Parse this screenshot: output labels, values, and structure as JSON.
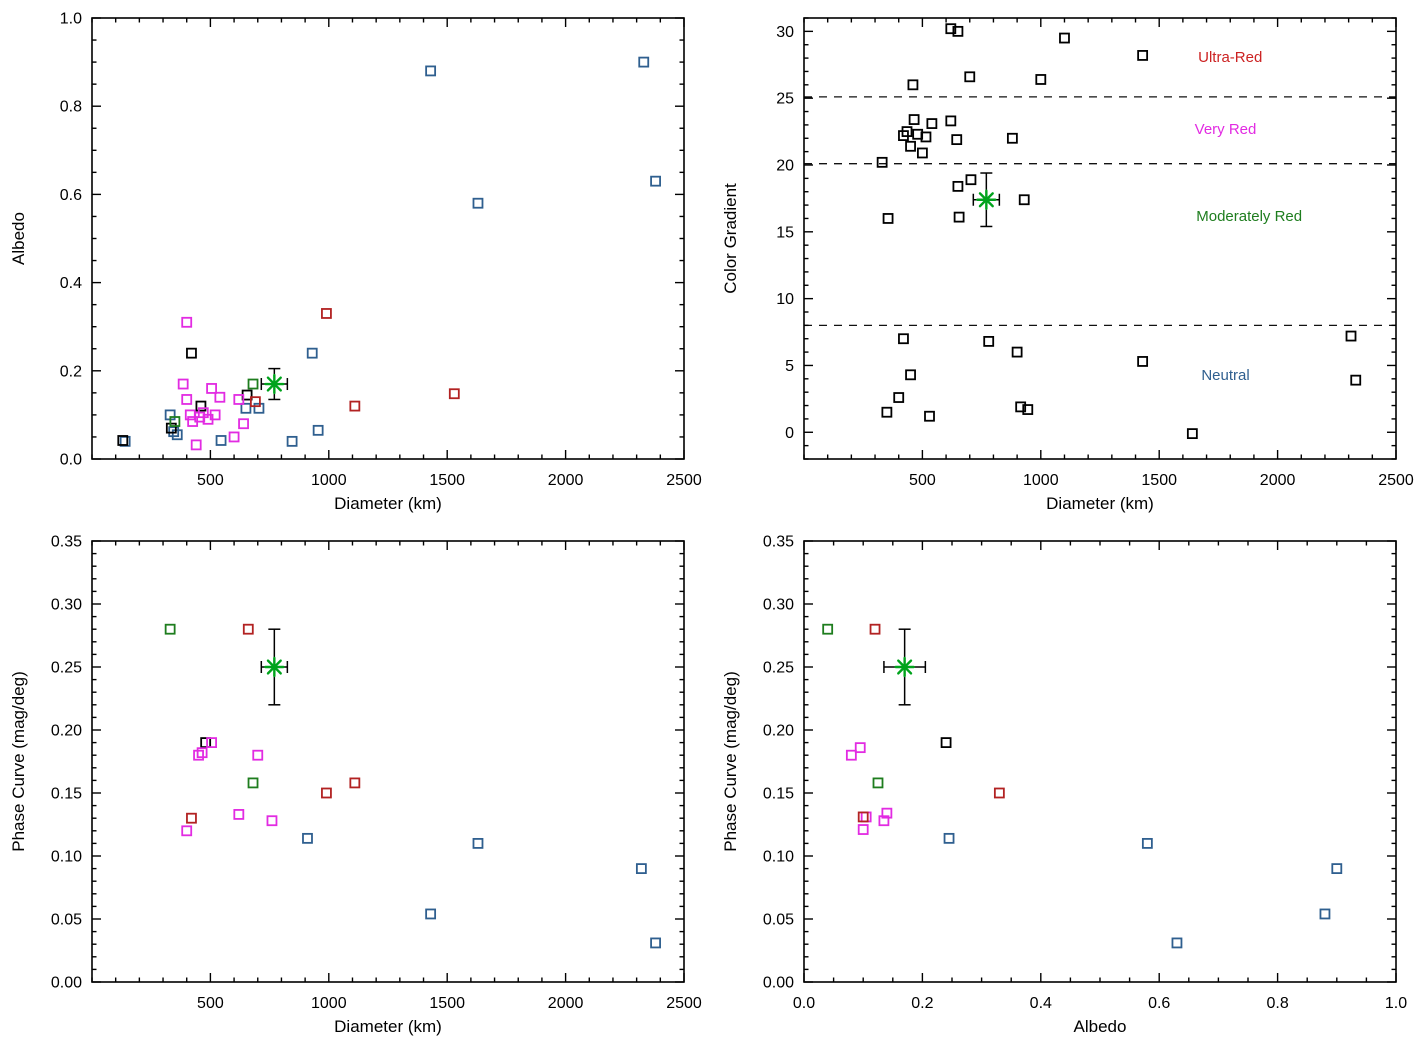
{
  "figure": {
    "description": "Four-panel scatter figure: albedo, color gradient and phase curve relations for trans-Neptunian objects",
    "accent_colors": {
      "neutral_blue": "#2f5f8f",
      "very_red_magenta": "#e22be2",
      "moderately_red_green": "#1e7d1e",
      "ultra_red_dark_red": "#b22222",
      "target_green": "#00a31c",
      "axis_black": "#000000"
    }
  },
  "chart_data": [
    {
      "id": "albedo-vs-diameter",
      "type": "scatter",
      "title": "",
      "xlabel": "Diameter (km)",
      "ylabel": "Albedo",
      "xlim": [
        0,
        2500
      ],
      "ylim": [
        0,
        1.0
      ],
      "xticks": [
        500,
        1000,
        1500,
        2000,
        2500
      ],
      "xtick_labels": [
        "500",
        "1000",
        "1500",
        "2000",
        "2500"
      ],
      "yticks": [
        0,
        0.2,
        0.4,
        0.6,
        0.8,
        1.0
      ],
      "ytick_labels": [
        "0.0",
        "0.2",
        "0.4",
        "0.6",
        "0.8",
        "1.0"
      ],
      "xminor": 5,
      "yminor": 4,
      "grid": false,
      "series": [
        {
          "name": "neutral-blue",
          "color": "#2f5f8f",
          "marker": "square",
          "points": [
            [
              140,
              0.04
            ],
            [
              330,
              0.1
            ],
            [
              345,
              0.062
            ],
            [
              360,
              0.055
            ],
            [
              545,
              0.042
            ],
            [
              650,
              0.115
            ],
            [
              705,
              0.115
            ],
            [
              845,
              0.04
            ],
            [
              930,
              0.24
            ],
            [
              955,
              0.065
            ],
            [
              1430,
              0.88
            ],
            [
              1630,
              0.58
            ],
            [
              2330,
              0.9
            ],
            [
              2380,
              0.63
            ]
          ]
        },
        {
          "name": "black",
          "color": "#000000",
          "marker": "square",
          "points": [
            [
              130,
              0.042
            ],
            [
              335,
              0.07
            ],
            [
              420,
              0.24
            ],
            [
              460,
              0.12
            ],
            [
              655,
              0.145
            ]
          ]
        },
        {
          "name": "very-red-magenta",
          "color": "#e22be2",
          "marker": "square",
          "points": [
            [
              385,
              0.17
            ],
            [
              400,
              0.31
            ],
            [
              400,
              0.135
            ],
            [
              415,
              0.1
            ],
            [
              425,
              0.085
            ],
            [
              440,
              0.032
            ],
            [
              455,
              0.095
            ],
            [
              470,
              0.105
            ],
            [
              490,
              0.09
            ],
            [
              505,
              0.16
            ],
            [
              520,
              0.1
            ],
            [
              540,
              0.14
            ],
            [
              600,
              0.05
            ],
            [
              620,
              0.135
            ],
            [
              640,
              0.08
            ]
          ]
        },
        {
          "name": "moderately-red-green",
          "color": "#1e7d1e",
          "marker": "square",
          "points": [
            [
              350,
              0.085
            ],
            [
              680,
              0.17
            ]
          ]
        },
        {
          "name": "ultra-red-dark-red",
          "color": "#b22222",
          "marker": "square",
          "points": [
            [
              690,
              0.13
            ],
            [
              990,
              0.33
            ],
            [
              1110,
              0.12
            ],
            [
              1530,
              0.148
            ]
          ]
        }
      ],
      "highlight": {
        "name": "target",
        "color": "#00a31c",
        "marker": "asterisk",
        "x": 770,
        "y": 0.17,
        "xerr": 55,
        "yerr": 0.035
      }
    },
    {
      "id": "color-gradient-vs-diameter",
      "type": "scatter",
      "title": "",
      "xlabel": "Diameter (km)",
      "ylabel": "Color Gradient",
      "xlim": [
        0,
        2500
      ],
      "ylim": [
        -2,
        31
      ],
      "xticks": [
        500,
        1000,
        1500,
        2000,
        2500
      ],
      "xtick_labels": [
        "500",
        "1000",
        "1500",
        "2000",
        "2500"
      ],
      "yticks": [
        0,
        5,
        10,
        15,
        20,
        25,
        30
      ],
      "ytick_labels": [
        "0",
        "5",
        "10",
        "15",
        "20",
        "25",
        "30"
      ],
      "xminor": 5,
      "yminor": 5,
      "grid": false,
      "hlines": [
        {
          "y": 25.1,
          "style": "dashed"
        },
        {
          "y": 20.1,
          "style": "dashed"
        },
        {
          "y": 8.0,
          "style": "dashed"
        }
      ],
      "annotations": [
        {
          "text": "Ultra-Red",
          "color": "#cc2222",
          "x": 1800,
          "y": 28.1
        },
        {
          "text": "Very Red",
          "color": "#e22be2",
          "x": 1780,
          "y": 22.7
        },
        {
          "text": "Moderately Red",
          "color": "#1e7d1e",
          "x": 1880,
          "y": 16.2
        },
        {
          "text": "Neutral",
          "color": "#2f5f8f",
          "x": 1780,
          "y": 4.3
        }
      ],
      "series": [
        {
          "name": "all-objects",
          "color": "#000000",
          "marker": "square",
          "points": [
            [
              330,
              20.2
            ],
            [
              355,
              16.0
            ],
            [
              420,
              22.2
            ],
            [
              435,
              22.5
            ],
            [
              450,
              21.4
            ],
            [
              460,
              26.0
            ],
            [
              465,
              23.4
            ],
            [
              480,
              22.3
            ],
            [
              500,
              20.9
            ],
            [
              515,
              22.1
            ],
            [
              540,
              23.1
            ],
            [
              620,
              30.2
            ],
            [
              650,
              30.0
            ],
            [
              620,
              23.3
            ],
            [
              645,
              21.9
            ],
            [
              650,
              18.4
            ],
            [
              655,
              16.1
            ],
            [
              700,
              26.6
            ],
            [
              705,
              18.9
            ],
            [
              880,
              22.0
            ],
            [
              930,
              17.4
            ],
            [
              1000,
              26.4
            ],
            [
              1100,
              29.5
            ],
            [
              1430,
              28.2
            ],
            [
              350,
              1.5
            ],
            [
              400,
              2.6
            ],
            [
              420,
              7.0
            ],
            [
              450,
              4.3
            ],
            [
              530,
              1.2
            ],
            [
              780,
              6.8
            ],
            [
              900,
              6.0
            ],
            [
              915,
              1.9
            ],
            [
              945,
              1.7
            ],
            [
              1430,
              5.3
            ],
            [
              1640,
              -0.1
            ],
            [
              2310,
              7.2
            ],
            [
              2330,
              3.9
            ]
          ]
        }
      ],
      "highlight": {
        "name": "target",
        "color": "#00a31c",
        "marker": "asterisk",
        "x": 770,
        "y": 17.4,
        "xerr": 55,
        "yerr": 2.0
      }
    },
    {
      "id": "phase-curve-vs-diameter",
      "type": "scatter",
      "title": "",
      "xlabel": "Diameter (km)",
      "ylabel": "Phase Curve (mag/deg)",
      "xlim": [
        0,
        2500
      ],
      "ylim": [
        0,
        0.35
      ],
      "xticks": [
        500,
        1000,
        1500,
        2000,
        2500
      ],
      "xtick_labels": [
        "500",
        "1000",
        "1500",
        "2000",
        "2500"
      ],
      "yticks": [
        0,
        0.05,
        0.1,
        0.15,
        0.2,
        0.25,
        0.3,
        0.35
      ],
      "ytick_labels": [
        "0.00",
        "0.05",
        "0.10",
        "0.15",
        "0.20",
        "0.25",
        "0.30",
        "0.35"
      ],
      "xminor": 5,
      "yminor": 5,
      "grid": false,
      "series": [
        {
          "name": "neutral-blue",
          "color": "#2f5f8f",
          "marker": "square",
          "points": [
            [
              910,
              0.114
            ],
            [
              1430,
              0.054
            ],
            [
              1630,
              0.11
            ],
            [
              2320,
              0.09
            ],
            [
              2380,
              0.031
            ]
          ]
        },
        {
          "name": "black",
          "color": "#000000",
          "marker": "square",
          "points": [
            [
              480,
              0.19
            ]
          ]
        },
        {
          "name": "very-red-magenta",
          "color": "#e22be2",
          "marker": "square",
          "points": [
            [
              400,
              0.12
            ],
            [
              450,
              0.18
            ],
            [
              465,
              0.182
            ],
            [
              505,
              0.19
            ],
            [
              620,
              0.133
            ],
            [
              700,
              0.18
            ],
            [
              760,
              0.128
            ]
          ]
        },
        {
          "name": "moderately-red-green",
          "color": "#1e7d1e",
          "marker": "square",
          "points": [
            [
              330,
              0.28
            ],
            [
              680,
              0.158
            ]
          ]
        },
        {
          "name": "ultra-red-dark-red",
          "color": "#b22222",
          "marker": "square",
          "points": [
            [
              420,
              0.13
            ],
            [
              660,
              0.28
            ],
            [
              990,
              0.15
            ],
            [
              1110,
              0.158
            ]
          ]
        }
      ],
      "highlight": {
        "name": "target",
        "color": "#00a31c",
        "marker": "asterisk",
        "x": 770,
        "y": 0.25,
        "xerr": 55,
        "yerr": 0.03
      }
    },
    {
      "id": "phase-curve-vs-albedo",
      "type": "scatter",
      "title": "",
      "xlabel": "Albedo",
      "ylabel": "Phase Curve (mag/deg)",
      "xlim": [
        0,
        1.0
      ],
      "ylim": [
        0,
        0.35
      ],
      "xticks": [
        0,
        0.2,
        0.4,
        0.6,
        0.8,
        1.0
      ],
      "xtick_labels": [
        "0.0",
        "0.2",
        "0.4",
        "0.6",
        "0.8",
        "1.0"
      ],
      "yticks": [
        0,
        0.05,
        0.1,
        0.15,
        0.2,
        0.25,
        0.3,
        0.35
      ],
      "ytick_labels": [
        "0.00",
        "0.05",
        "0.10",
        "0.15",
        "0.20",
        "0.25",
        "0.30",
        "0.35"
      ],
      "xminor": 4,
      "yminor": 5,
      "grid": false,
      "series": [
        {
          "name": "neutral-blue",
          "color": "#2f5f8f",
          "marker": "square",
          "points": [
            [
              0.245,
              0.114
            ],
            [
              0.58,
              0.11
            ],
            [
              0.63,
              0.031
            ],
            [
              0.88,
              0.054
            ],
            [
              0.9,
              0.09
            ]
          ]
        },
        {
          "name": "black",
          "color": "#000000",
          "marker": "square",
          "points": [
            [
              0.24,
              0.19
            ]
          ]
        },
        {
          "name": "very-red-magenta",
          "color": "#e22be2",
          "marker": "square",
          "points": [
            [
              0.08,
              0.18
            ],
            [
              0.095,
              0.186
            ],
            [
              0.1,
              0.121
            ],
            [
              0.105,
              0.131
            ],
            [
              0.135,
              0.128
            ],
            [
              0.14,
              0.134
            ]
          ]
        },
        {
          "name": "moderately-red-green",
          "color": "#1e7d1e",
          "marker": "square",
          "points": [
            [
              0.04,
              0.28
            ],
            [
              0.125,
              0.158
            ]
          ]
        },
        {
          "name": "ultra-red-dark-red",
          "color": "#b22222",
          "marker": "square",
          "points": [
            [
              0.12,
              0.28
            ],
            [
              0.1,
              0.131
            ],
            [
              0.33,
              0.15
            ]
          ]
        }
      ],
      "highlight": {
        "name": "target",
        "color": "#00a31c",
        "marker": "asterisk",
        "x": 0.17,
        "y": 0.25,
        "xerr": 0.035,
        "yerr": 0.03
      }
    }
  ]
}
